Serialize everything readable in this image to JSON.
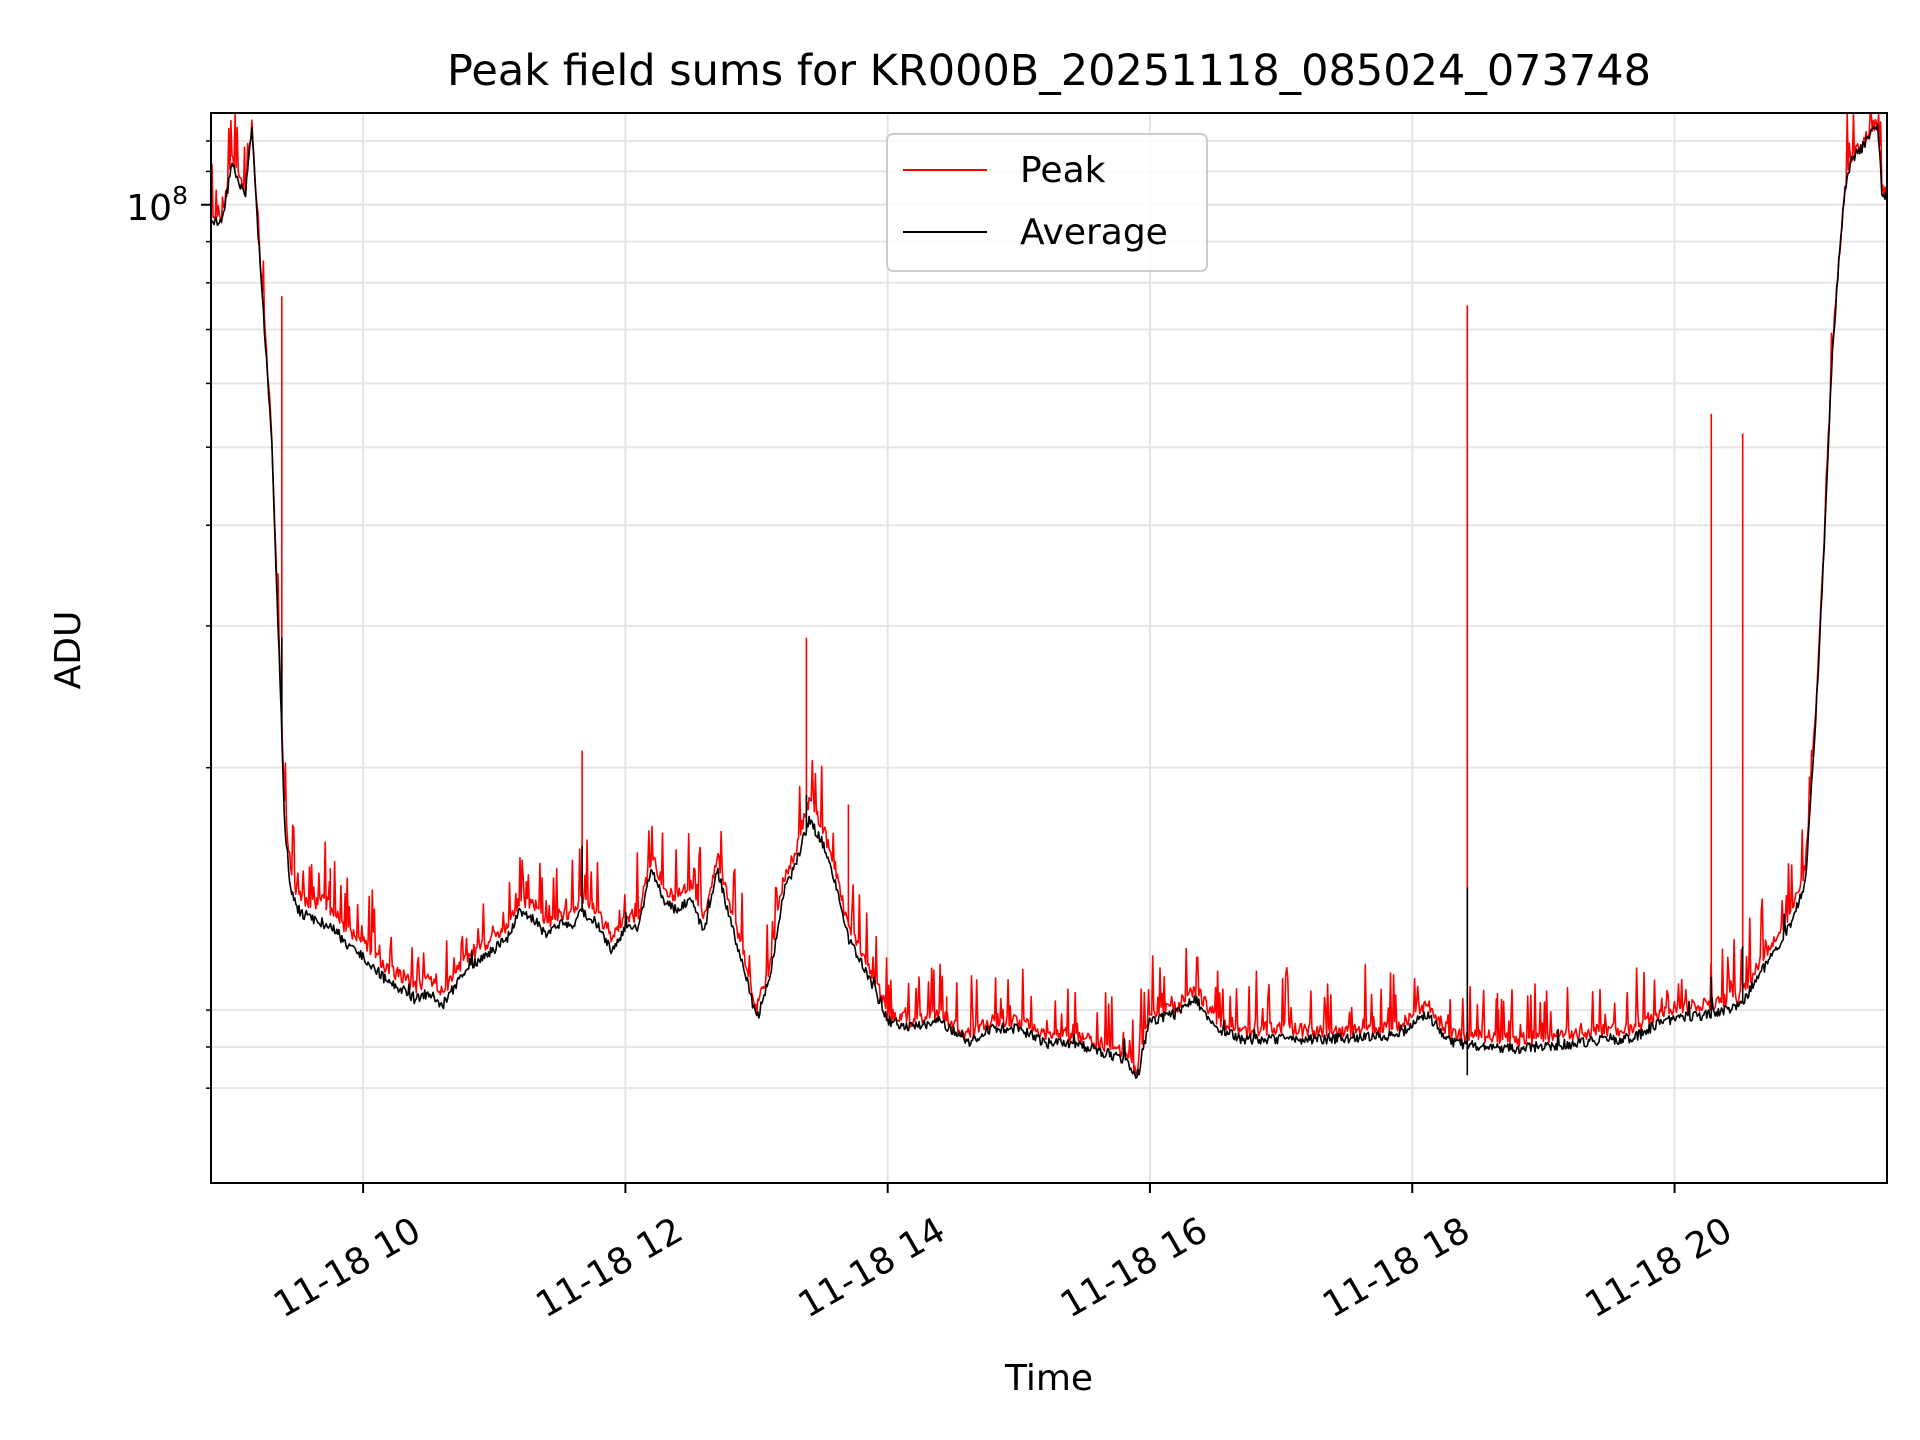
{
  "chart_data": {
    "type": "line",
    "title": "Peak field sums for KR000B_20251118_085024_073748",
    "xlabel": "Time",
    "ylabel": "ADU",
    "yscale": "log",
    "y_tick_label": "10",
    "y_tick_exponent": "8",
    "y_tick_value": 100000000,
    "ylim": [
      6100000,
      130000000
    ],
    "xlim_hours": [
      8.84,
      21.62
    ],
    "x_ticks": [
      {
        "hour": 10,
        "label": "11-18 10"
      },
      {
        "hour": 12,
        "label": "11-18 12"
      },
      {
        "hour": 14,
        "label": "11-18 14"
      },
      {
        "hour": 16,
        "label": "11-18 16"
      },
      {
        "hour": 18,
        "label": "11-18 18"
      },
      {
        "hour": 20,
        "label": "11-18 20"
      }
    ],
    "y_minor_ticks": [
      8000000,
      9000000,
      10000000,
      20000000,
      30000000,
      40000000,
      50000000,
      60000000,
      70000000,
      80000000,
      90000000,
      110000000,
      120000000
    ],
    "grid": true,
    "legend_position": "top-center",
    "colors": {
      "peak": "#ff0000",
      "average": "#000000",
      "grid": "#e5e5e5"
    },
    "series": [
      {
        "name": "Peak",
        "color": "#ff0000",
        "x": [
          8.84,
          8.92,
          9.0,
          9.05,
          9.1,
          9.15,
          9.2,
          9.3,
          9.38,
          9.4,
          9.45,
          9.5,
          9.6,
          9.7,
          9.8,
          9.9,
          10.0,
          10.1,
          10.2,
          10.3,
          10.4,
          10.5,
          10.6,
          10.7,
          10.8,
          10.9,
          11.0,
          11.1,
          11.2,
          11.3,
          11.4,
          11.5,
          11.6,
          11.67,
          11.8,
          11.9,
          12.0,
          12.1,
          12.2,
          12.3,
          12.4,
          12.5,
          12.6,
          12.7,
          12.8,
          12.9,
          13.0,
          13.1,
          13.2,
          13.3,
          13.4,
          13.5,
          13.6,
          13.7,
          13.8,
          13.9,
          14.0,
          14.2,
          14.4,
          14.6,
          14.8,
          15.0,
          15.2,
          15.4,
          15.6,
          15.8,
          15.9,
          16.0,
          16.2,
          16.35,
          16.5,
          16.7,
          17.0,
          17.3,
          17.6,
          17.9,
          18.1,
          18.3,
          18.5,
          18.8,
          19.1,
          19.4,
          19.7,
          19.9,
          20.1,
          20.3,
          20.5,
          20.7,
          20.9,
          21.0,
          21.05,
          21.1,
          21.15,
          21.2,
          21.25,
          21.3,
          21.35,
          21.4,
          21.45,
          21.5,
          21.55,
          21.58,
          21.62
        ],
        "values": [
          97000000,
          96000000,
          113000000,
          108000000,
          103000000,
          126000000,
          93000000,
          53000000,
          23000000,
          18000000,
          14800000,
          14000000,
          13500000,
          13700000,
          13100000,
          12400000,
          12200000,
          11700000,
          11200000,
          11000000,
          10700000,
          10900000,
          10500000,
          11100000,
          11700000,
          12000000,
          12300000,
          12700000,
          13700000,
          13500000,
          12800000,
          13200000,
          13200000,
          13800000,
          13100000,
          12200000,
          13100000,
          13100000,
          15500000,
          14100000,
          13800000,
          14300000,
          13000000,
          15600000,
          13300000,
          11800000,
          10000000,
          11300000,
          14400000,
          15800000,
          18200000,
          17000000,
          15000000,
          12700000,
          11800000,
          11000000,
          9900000,
          9700000,
          9900000,
          9300000,
          9700000,
          9700000,
          9300000,
          9300000,
          9100000,
          8900000,
          8400000,
          9900000,
          10100000,
          10600000,
          9800000,
          9400000,
          9500000,
          9400000,
          9450000,
          9500000,
          10200000,
          9300000,
          9300000,
          9200000,
          9300000,
          9400000,
          9500000,
          10000000,
          10100000,
          10200000,
          10400000,
          11800000,
          13300000,
          15000000,
          20000000,
          28000000,
          42000000,
          65000000,
          85000000,
          105000000,
          115000000,
          117000000,
          120000000,
          124000000,
          127000000,
          105000000,
          103000000
        ]
      },
      {
        "name": "Average",
        "color": "#000000",
        "x": [
          8.84,
          8.92,
          9.0,
          9.05,
          9.1,
          9.15,
          9.2,
          9.3,
          9.38,
          9.4,
          9.45,
          9.5,
          9.6,
          9.7,
          9.8,
          9.9,
          10.0,
          10.1,
          10.2,
          10.3,
          10.4,
          10.5,
          10.6,
          10.7,
          10.8,
          10.9,
          11.0,
          11.1,
          11.2,
          11.3,
          11.4,
          11.5,
          11.6,
          11.67,
          11.8,
          11.9,
          12.0,
          12.1,
          12.2,
          12.3,
          12.4,
          12.5,
          12.6,
          12.7,
          12.8,
          12.9,
          13.0,
          13.1,
          13.2,
          13.3,
          13.4,
          13.5,
          13.6,
          13.7,
          13.8,
          13.9,
          14.0,
          14.2,
          14.4,
          14.6,
          14.8,
          15.0,
          15.2,
          15.4,
          15.6,
          15.8,
          15.9,
          16.0,
          16.2,
          16.35,
          16.5,
          16.7,
          17.0,
          17.3,
          17.6,
          17.9,
          18.1,
          18.3,
          18.5,
          18.8,
          19.1,
          19.4,
          19.7,
          19.9,
          20.1,
          20.3,
          20.5,
          20.7,
          20.9,
          21.0,
          21.05,
          21.1,
          21.15,
          21.2,
          21.25,
          21.3,
          21.35,
          21.4,
          21.45,
          21.5,
          21.55,
          21.58,
          21.62
        ],
        "values": [
          96000000,
          95000000,
          112000000,
          107000000,
          102000000,
          125000000,
          92000000,
          52000000,
          22000000,
          17000000,
          14000000,
          13300000,
          13000000,
          12800000,
          12500000,
          11900000,
          11700000,
          11200000,
          10800000,
          10600000,
          10300000,
          10500000,
          10100000,
          10700000,
          11300000,
          11600000,
          11900000,
          12300000,
          13300000,
          13000000,
          12300000,
          12800000,
          12800000,
          13300000,
          12700000,
          11800000,
          12700000,
          12700000,
          15000000,
          13600000,
          13300000,
          13800000,
          12500000,
          15000000,
          12900000,
          11400000,
          9700000,
          10900000,
          13900000,
          15200000,
          17200000,
          16200000,
          14400000,
          12300000,
          11400000,
          10600000,
          9700000,
          9500000,
          9700000,
          9100000,
          9500000,
          9500000,
          9100000,
          9100000,
          8900000,
          8700000,
          8200000,
          9700000,
          9900000,
          10300000,
          9500000,
          9200000,
          9200000,
          9200000,
          9250000,
          9300000,
          9900000,
          9100000,
          9050000,
          8950000,
          9050000,
          9150000,
          9250000,
          9700000,
          9800000,
          9900000,
          10100000,
          11400000,
          12900000,
          14500000,
          19500000,
          27000000,
          41000000,
          64000000,
          84000000,
          104000000,
          114000000,
          116000000,
          119000000,
          123000000,
          126000000,
          104000000,
          102000000
        ]
      }
    ],
    "peak_spikes": [
      {
        "hour": 9.38,
        "value": 77000000
      },
      {
        "hour": 9.38,
        "value": 28000000
      },
      {
        "hour": 9.75,
        "value": 15000000
      },
      {
        "hour": 11.67,
        "value": 21000000
      },
      {
        "hour": 13.38,
        "value": 29000000
      },
      {
        "hour": 13.7,
        "value": 18000000
      },
      {
        "hour": 14.45,
        "value": 10400000
      },
      {
        "hour": 16.35,
        "value": 10700000
      },
      {
        "hour": 18.42,
        "value": 75000000
      },
      {
        "hour": 18.65,
        "value": 10500000
      },
      {
        "hour": 20.28,
        "value": 55000000
      },
      {
        "hour": 20.52,
        "value": 52000000
      },
      {
        "hour": 20.98,
        "value": 15000000
      }
    ],
    "average_spikes": [
      {
        "hour": 9.38,
        "value": 29000000
      },
      {
        "hour": 11.67,
        "value": 16000000
      },
      {
        "hour": 13.38,
        "value": 18500000
      },
      {
        "hour": 18.42,
        "value": 14200000
      },
      {
        "hour": 18.42,
        "value": 8300000
      },
      {
        "hour": 20.28,
        "value": 11000000
      },
      {
        "hour": 20.52,
        "value": 12000000
      }
    ]
  }
}
